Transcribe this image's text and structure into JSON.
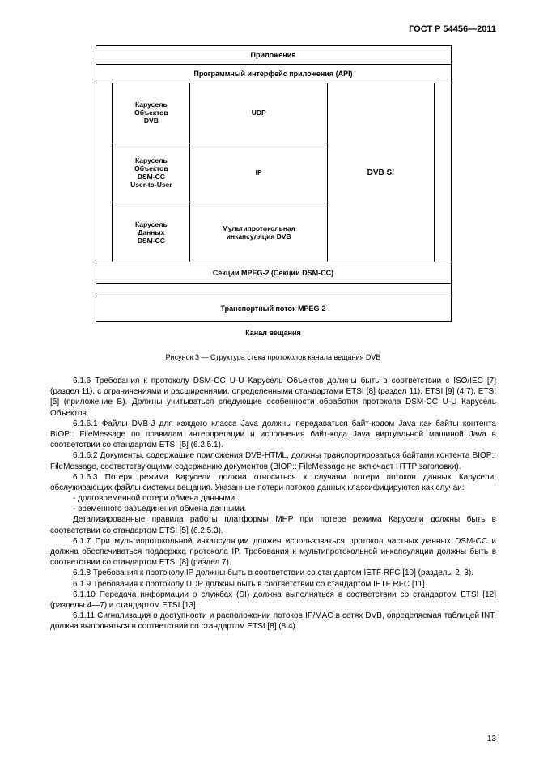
{
  "header": {
    "code": "ГОСТ Р 54456—2011"
  },
  "diagram": {
    "row_applications": "Приложения",
    "row_api": "Программный интерфейс приложения (API)",
    "left_stack": [
      "Карусель\nОбъектов\nDVB",
      "Карусель\nОбъектов\nDSM-CC\nUser-to-User",
      "Карусель\nДанных\nDSM-CC"
    ],
    "center_stack": [
      "UDP",
      "IP",
      "Мультипротокольная\nинкапсуляция DVB"
    ],
    "right_label": "DVB SI",
    "sections_row": "Секции MPEG-2 (Секции DSM-CC)",
    "transport_row": "Транспортный поток MPEG-2",
    "channel_row": "Канал вещания"
  },
  "caption": "Рисунок 3 — Структура стека протоколов канала вещания DVB",
  "paragraphs": {
    "p1": "6.1.6 Требования к протоколу DSM-CC U-U Карусель Объектов должны быть в соответствии с ISO/IEC [7] (раздел 11), с ограничениями и расширениями, определенными стандартами ETSI [8] (раздел 11), ETSI [9] (4.7), ETSI [5] (приложение B). Должны учитываться следующие особенности обработки протокола DSM-CC U-U Карусель Объектов.",
    "p2": "6.1.6.1 Файлы DVB-J для каждого класса Java должны передаваться байт-кодом Java как байты контента BIOP:: FileMessage по правилам интерпретации и исполнения байт-кода Java виртуальной машиной Java в соответствии со стандартом ETSI [5] (6.2.5.1).",
    "p3": "6.1.6.2 Документы, содержащие приложения DVB-HTML, должны транспортироваться байтами контента BIOP:: FileMessage, соответствующими содержанию документов (BIOP:: FileMessage не включает HTTP заголовки).",
    "p4": "6.1.6.3 Потеря режима Карусели должна относиться к случаям потери потоков данных Карусели, обслуживающих файлы системы вещания. Указанные потери потоков данных классифицируются как случаи:",
    "li1": "-  долговременной потери обмена данными;",
    "li2": "-  временного разъединения обмена данными.",
    "p5": "Детализированные правила работы платформы MHP при потере режима Карусели должны быть в соответствии со стандартом ETSI [5] (6.2.5.3).",
    "p6": "6.1.7 При мультипротокольной инкапсуляции должен использоваться протокол частных данных DSM-CC и должна обеспечиваться поддержка протокола IP. Требования к мультипротокольной инкапсуляции должны быть в соответствии со стандартом ETSI [8] (раздел 7).",
    "p7": "6.1.8 Требования к протоколу IP должны быть в соответствии со стандартом IETF RFC [10] (разделы 2, 3).",
    "p8": "6.1.9 Требования к протоколу UDP должны быть в соответствии со стандартом IETF RFC [11].",
    "p9": "6.1.10 Передача информации о службах (SI) должна выполняться в соответствии со стандартом ETSI [12] (разделы 4—7) и стандартом ETSI [13].",
    "p10": "6.1.11 Сигнализация о доступности и расположении потоков IP/MAC в сетях DVB, определяемая таблицей INT, должна выполняться в соответствии со стандартом ETSI [8] (8.4)."
  },
  "page_number": "13"
}
